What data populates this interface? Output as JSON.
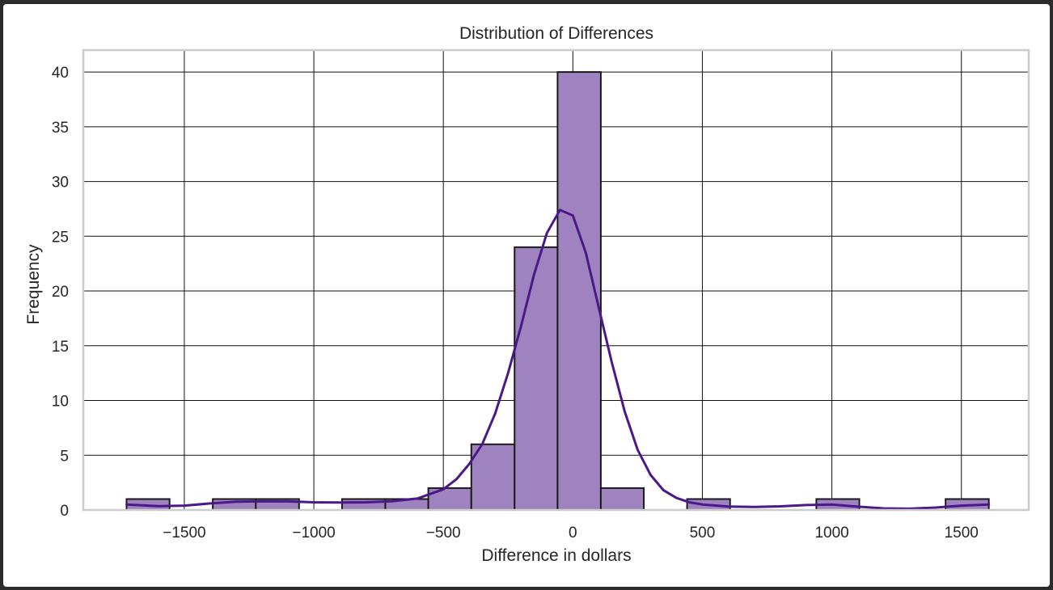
{
  "chart_data": {
    "type": "bar",
    "title": "Distribution of Differences",
    "xlabel": "Difference in dollars",
    "ylabel": "Frequency",
    "xlim": [
      -1890,
      1760
    ],
    "ylim": [
      0,
      42
    ],
    "xticks": [
      -1500,
      -1000,
      -500,
      0,
      500,
      1000,
      1500
    ],
    "xtick_labels": [
      "−1500",
      "−1000",
      "−500",
      "0",
      "500",
      "1000",
      "1500"
    ],
    "yticks": [
      0,
      5,
      10,
      15,
      20,
      25,
      30,
      35,
      40
    ],
    "ytick_labels": [
      "0",
      "5",
      "10",
      "15",
      "20",
      "25",
      "30",
      "35",
      "40"
    ],
    "grid": true,
    "bins": [
      {
        "x0": -1723,
        "x1": -1557,
        "count": 1
      },
      {
        "x0": -1557,
        "x1": -1390,
        "count": 0
      },
      {
        "x0": -1390,
        "x1": -1224,
        "count": 1
      },
      {
        "x0": -1224,
        "x1": -1057,
        "count": 1
      },
      {
        "x0": -1057,
        "x1": -891,
        "count": 0
      },
      {
        "x0": -891,
        "x1": -724,
        "count": 1
      },
      {
        "x0": -724,
        "x1": -558,
        "count": 1
      },
      {
        "x0": -558,
        "x1": -392,
        "count": 2
      },
      {
        "x0": -392,
        "x1": -225,
        "count": 6
      },
      {
        "x0": -225,
        "x1": -59,
        "count": 24
      },
      {
        "x0": -59,
        "x1": 108,
        "count": 40
      },
      {
        "x0": 108,
        "x1": 274,
        "count": 2
      },
      {
        "x0": 274,
        "x1": 441,
        "count": 0
      },
      {
        "x0": 441,
        "x1": 607,
        "count": 1
      },
      {
        "x0": 607,
        "x1": 773,
        "count": 0
      },
      {
        "x0": 773,
        "x1": 940,
        "count": 0
      },
      {
        "x0": 940,
        "x1": 1106,
        "count": 1
      },
      {
        "x0": 1106,
        "x1": 1273,
        "count": 0
      },
      {
        "x0": 1273,
        "x1": 1439,
        "count": 0
      },
      {
        "x0": 1439,
        "x1": 1606,
        "count": 1
      }
    ],
    "kde": {
      "x": [
        -1723,
        -1600,
        -1500,
        -1400,
        -1300,
        -1200,
        -1100,
        -1000,
        -900,
        -800,
        -700,
        -600,
        -500,
        -450,
        -400,
        -350,
        -300,
        -250,
        -200,
        -150,
        -100,
        -50,
        0,
        50,
        100,
        150,
        200,
        250,
        300,
        350,
        400,
        450,
        500,
        600,
        700,
        800,
        900,
        1000,
        1100,
        1200,
        1300,
        1400,
        1500,
        1606
      ],
      "y": [
        0.5,
        0.35,
        0.4,
        0.6,
        0.75,
        0.8,
        0.78,
        0.7,
        0.68,
        0.7,
        0.8,
        1.05,
        1.9,
        2.8,
        4.2,
        6.0,
        8.8,
        12.5,
        16.8,
        21.5,
        25.3,
        27.4,
        26.9,
        23.5,
        18.5,
        13.5,
        9.0,
        5.5,
        3.2,
        1.8,
        1.1,
        0.7,
        0.5,
        0.32,
        0.28,
        0.33,
        0.45,
        0.5,
        0.3,
        0.15,
        0.12,
        0.22,
        0.4,
        0.5
      ]
    },
    "colors": {
      "bar_fill": "#9f83c0",
      "bar_edge": "#1a1a1a",
      "kde_line": "#4b1888",
      "grid": "#111111",
      "spine": "#cccccc"
    }
  }
}
